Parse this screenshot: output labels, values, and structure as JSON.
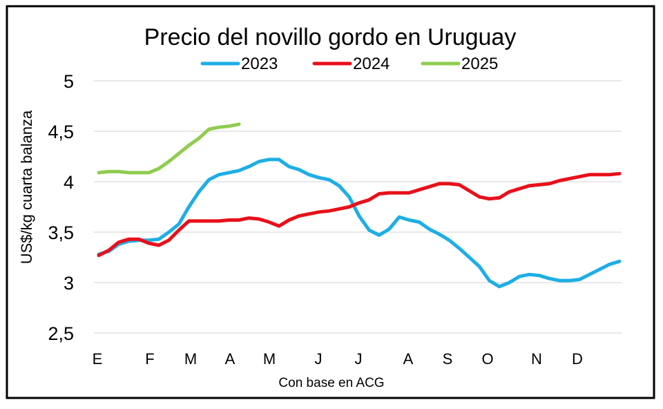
{
  "chart_data": {
    "type": "line",
    "title": "Precio del novillo gordo en Uruguay",
    "ylabel": "US$/kg cuarta balanza",
    "xlabel": "Con base en ACG",
    "ylim": [
      2.5,
      5
    ],
    "yticks": [
      "5",
      "4,5",
      "4",
      "3,5",
      "3",
      "2,5"
    ],
    "ytick_values": [
      5,
      4.5,
      4,
      3.5,
      3,
      2.5
    ],
    "grid": true,
    "legend_position": "top",
    "month_labels": [
      "E",
      "F",
      "M",
      "A",
      "M",
      "J",
      "J",
      "A",
      "S",
      "O",
      "N",
      "D"
    ],
    "series": [
      {
        "name": "2023",
        "color": "#1eaee6",
        "values": [
          3.28,
          3.31,
          3.38,
          3.41,
          3.42,
          3.42,
          3.43,
          3.5,
          3.58,
          3.75,
          3.9,
          4.02,
          4.07,
          4.09,
          4.11,
          4.15,
          4.2,
          4.22,
          4.22,
          4.15,
          4.12,
          4.07,
          4.04,
          4.02,
          3.96,
          3.85,
          3.66,
          3.52,
          3.47,
          3.53,
          3.65,
          3.62,
          3.6,
          3.53,
          3.48,
          3.42,
          3.34,
          3.25,
          3.16,
          3.02,
          2.96,
          3.0,
          3.06,
          3.08,
          3.07,
          3.04,
          3.02,
          3.02,
          3.03,
          3.08,
          3.13,
          3.18,
          3.21
        ]
      },
      {
        "name": "2024",
        "color": "#e8101b",
        "values": [
          3.27,
          3.32,
          3.4,
          3.43,
          3.43,
          3.39,
          3.37,
          3.42,
          3.52,
          3.61,
          3.61,
          3.61,
          3.61,
          3.62,
          3.62,
          3.64,
          3.63,
          3.6,
          3.56,
          3.62,
          3.66,
          3.68,
          3.7,
          3.71,
          3.73,
          3.75,
          3.79,
          3.82,
          3.88,
          3.89,
          3.89,
          3.89,
          3.92,
          3.95,
          3.98,
          3.98,
          3.97,
          3.91,
          3.85,
          3.83,
          3.84,
          3.9,
          3.93,
          3.96,
          3.97,
          3.98,
          4.01,
          4.03,
          4.05,
          4.07,
          4.07,
          4.07,
          4.08
        ]
      },
      {
        "name": "2025",
        "color": "#8fcd4f",
        "values": [
          4.09,
          4.1,
          4.1,
          4.09,
          4.09,
          4.09,
          4.13,
          4.2,
          4.28,
          4.36,
          4.43,
          4.52,
          4.54,
          4.55,
          4.57
        ]
      }
    ]
  }
}
